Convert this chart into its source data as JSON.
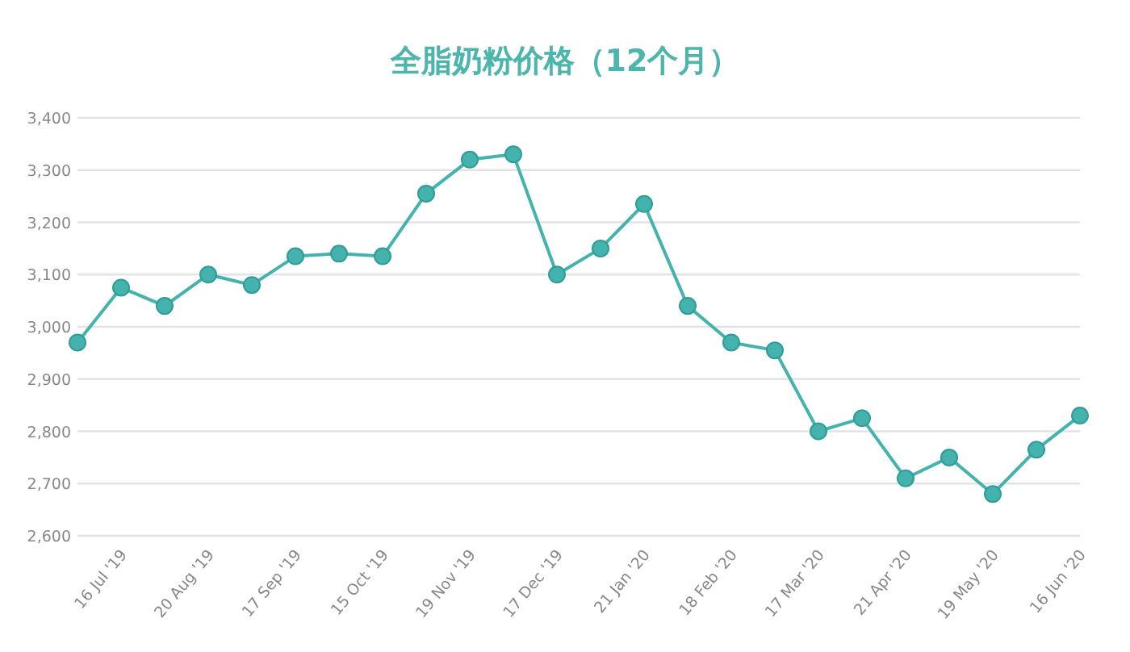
{
  "chart_data": {
    "type": "line",
    "title": "全脂奶粉价格（12个月）",
    "categories": [
      null,
      "16 Jul '19",
      null,
      "20 Aug '19",
      null,
      "17 Sep '19",
      null,
      "15 Oct '19",
      null,
      "19 Nov '19",
      null,
      "17 Dec '19",
      null,
      "21 Jan '20",
      null,
      "18 Feb '20",
      null,
      "17 Mar '20",
      null,
      "21 Apr '20",
      null,
      "19 May '20",
      null,
      "16 Jun '20"
    ],
    "series": [
      {
        "color": "#44b3ae",
        "values": [
          2970,
          3075,
          3040,
          3100,
          3080,
          3135,
          3140,
          3135,
          3255,
          3320,
          3330,
          3100,
          3150,
          3235,
          3040,
          2970,
          2955,
          2800,
          2825,
          2710,
          2750,
          2680,
          2765,
          2830
        ]
      }
    ],
    "ylim": [
      2600,
      3400
    ],
    "yticks": [
      {
        "value": 2600,
        "label": "2,600"
      },
      {
        "value": 2700,
        "label": "2,700"
      },
      {
        "value": 2800,
        "label": "2,800"
      },
      {
        "value": 2900,
        "label": "2,900"
      },
      {
        "value": 3000,
        "label": "3,000"
      },
      {
        "value": 3100,
        "label": "3,100"
      },
      {
        "value": 3200,
        "label": "3,200"
      },
      {
        "value": 3300,
        "label": "3,300"
      },
      {
        "value": 3400,
        "label": "3,400"
      }
    ],
    "grid": "y",
    "marker": "circle",
    "line_style": "solid"
  }
}
